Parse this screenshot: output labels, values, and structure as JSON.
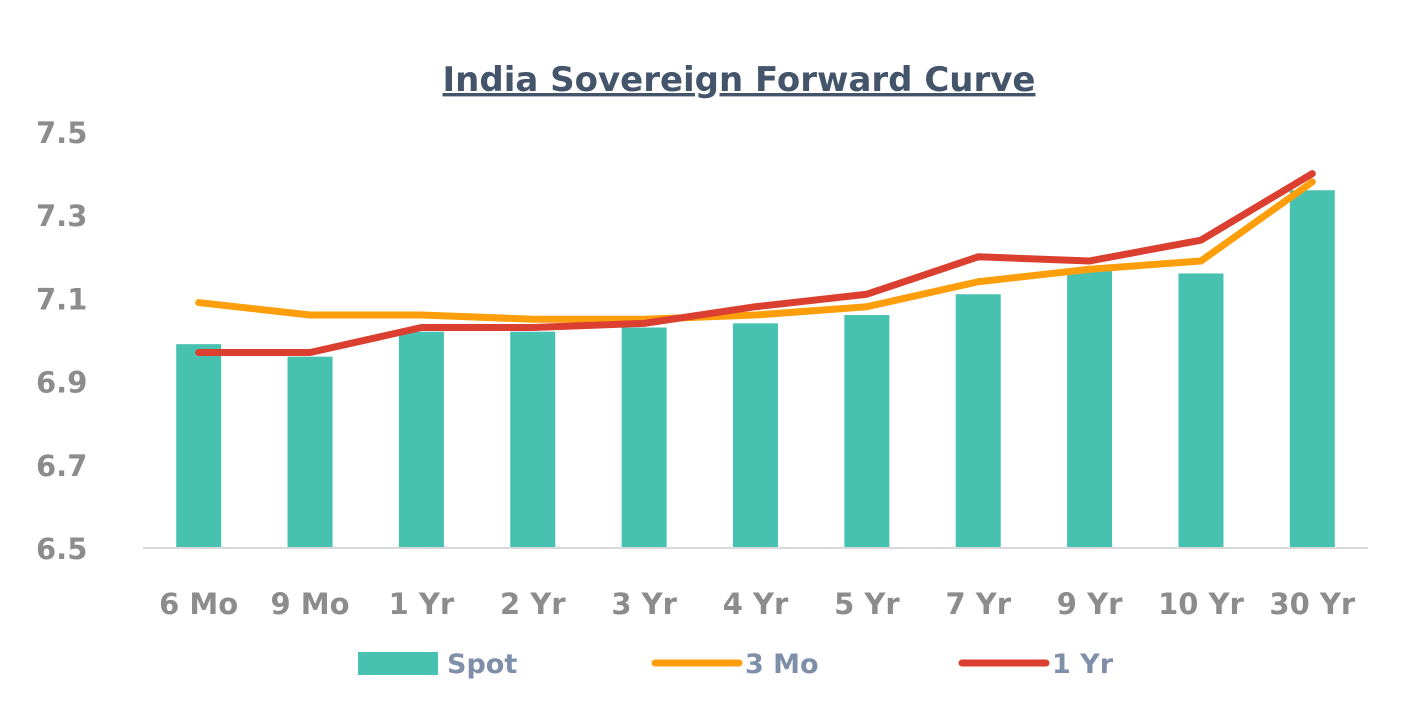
{
  "chart_data": {
    "type": "bar+line",
    "title": "India Sovereign Forward Curve",
    "xlabel": "",
    "ylabel": "",
    "ylim": [
      6.5,
      7.5
    ],
    "yticks": [
      "6.5",
      "6.7",
      "6.9",
      "7.1",
      "7.3",
      "7.5"
    ],
    "ytick_values": [
      6.5,
      6.7,
      6.9,
      7.1,
      7.3,
      7.5
    ],
    "grid": false,
    "legend_position": "bottom",
    "categories": [
      "6 Mo",
      "9 Mo",
      "1 Yr",
      "2 Yr",
      "3 Yr",
      "4 Yr",
      "5 Yr",
      "7 Yr",
      "9 Yr",
      "10 Yr",
      "30 Yr"
    ],
    "series": [
      {
        "name": "Spot",
        "kind": "bar",
        "color": "#47C1B0",
        "values": [
          6.99,
          6.96,
          7.02,
          7.02,
          7.03,
          7.04,
          7.06,
          7.11,
          7.17,
          7.16,
          7.36
        ]
      },
      {
        "name": "3 Mo",
        "kind": "line",
        "color": "#FF9E0B",
        "values": [
          7.09,
          7.06,
          7.06,
          7.05,
          7.05,
          7.06,
          7.08,
          7.14,
          7.17,
          7.19,
          7.38
        ]
      },
      {
        "name": "1 Yr",
        "kind": "line",
        "color": "#DB3F30",
        "values": [
          6.97,
          6.97,
          7.03,
          7.03,
          7.04,
          7.08,
          7.11,
          7.2,
          7.19,
          7.24,
          7.4
        ]
      }
    ]
  }
}
